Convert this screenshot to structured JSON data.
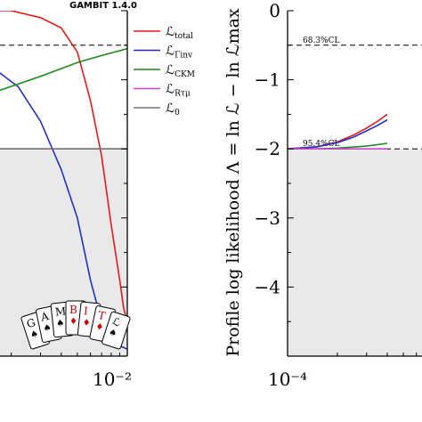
{
  "header": {
    "badge": "GAMBIT 1.4.0"
  },
  "legend": {
    "placement": "top-right of left panel",
    "entries": [
      {
        "name": "total",
        "main": "ℒ",
        "sub": "total",
        "color": "#e31a1c"
      },
      {
        "name": "gamma-inv",
        "main": "ℒ",
        "sub": "Γinv",
        "color": "#1f2fbf"
      },
      {
        "name": "ckm",
        "main": "ℒ",
        "sub": "CKM",
        "color": "#1a8a1a"
      },
      {
        "name": "r-tau-mu",
        "main": "ℒ",
        "sub": "Rτμ",
        "color": "#cc44cc"
      },
      {
        "name": "zero",
        "main": "ℒ",
        "sub": "0",
        "color": "#777777"
      }
    ]
  },
  "logo": {
    "cards": [
      "G",
      "A",
      "M",
      "B",
      "I",
      "T",
      "ℒ"
    ],
    "red_cards": [
      "B",
      "I",
      "T"
    ]
  },
  "chart_data": [
    {
      "type": "line",
      "panel": "left",
      "x_scale": "log",
      "xlim": [
        0.0001,
        0.01
      ],
      "x_tick_labels": [
        "10⁻²"
      ],
      "ylim": [
        -5,
        0
      ],
      "grid": false,
      "shaded_region": {
        "y_below": -2.0,
        "color": "#e9e9e9"
      },
      "reference_lines": [
        {
          "label": "68.3%CL",
          "y": -0.5
        },
        {
          "label": "95.4%CL",
          "y": -2.0
        }
      ],
      "series": [
        {
          "name": "total",
          "x": [
            8e-05,
            0.0002,
            0.0005,
            0.001,
            0.002,
            0.003,
            0.004,
            0.005,
            0.006,
            0.007,
            0.008,
            0.009,
            0.0095,
            0.01
          ],
          "y": [
            0.0,
            0.0,
            0.0,
            0.0,
            0.0,
            -0.1,
            -0.25,
            -0.6,
            -1.3,
            -2.1,
            -3.1,
            -3.9,
            -4.3,
            -4.5
          ]
        },
        {
          "name": "Γinv",
          "x": [
            8e-05,
            0.0003,
            0.0008,
            0.0015,
            0.0022,
            0.003,
            0.004,
            0.005,
            0.006,
            0.007,
            0.008,
            0.009,
            0.01
          ],
          "y": [
            -0.7,
            -0.62,
            -0.55,
            -0.8,
            -1.1,
            -1.6,
            -2.3,
            -3.0,
            -3.9,
            -4.5,
            -4.75,
            -4.85,
            -4.9
          ]
        },
        {
          "name": "CKM",
          "x": [
            8e-05,
            0.0003,
            0.0008,
            0.0015,
            0.003,
            0.005,
            0.007,
            0.01
          ],
          "y": [
            -1.55,
            -1.48,
            -1.35,
            -1.2,
            -0.95,
            -0.75,
            -0.65,
            -0.55
          ]
        },
        {
          "name": "Rτμ",
          "x": [
            8e-05,
            0.01
          ],
          "y": [
            -2.0,
            -2.0
          ]
        },
        {
          "name": "0",
          "x": [
            8e-05,
            0.01
          ],
          "y": [
            -2.0,
            -2.0
          ]
        }
      ]
    },
    {
      "type": "line",
      "panel": "right",
      "x_scale": "log",
      "xlim": [
        0.0001,
        0.01
      ],
      "x_tick_labels": [
        "10⁻⁴"
      ],
      "ylim": [
        -5,
        0
      ],
      "y_ticks": [
        0,
        -1,
        -2,
        -3,
        -4
      ],
      "y_tick_labels": [
        "0",
        "−1",
        "−2",
        "−3",
        "−4"
      ],
      "ylabel": "Profile log likelihood Λ = ln ℒ − ln ℒmax",
      "grid": false,
      "shaded_region": {
        "y_below": -2.0,
        "color": "#e9e9e9"
      },
      "reference_lines": [
        {
          "label": "68.3%CL",
          "y": -0.5
        },
        {
          "label": "95.4%CL",
          "y": -2.0
        }
      ],
      "series": [
        {
          "name": "total",
          "x": [
            0.0001,
            0.00015,
            0.0002,
            0.00025,
            0.0003,
            0.00035,
            0.0004
          ],
          "y": [
            -2.0,
            -1.97,
            -1.9,
            -1.8,
            -1.7,
            -1.6,
            -1.5
          ]
        },
        {
          "name": "Γinv",
          "x": [
            0.0001,
            0.00015,
            0.0002,
            0.00025,
            0.0003,
            0.00035,
            0.0004
          ],
          "y": [
            -2.0,
            -1.97,
            -1.91,
            -1.83,
            -1.74,
            -1.66,
            -1.58
          ]
        },
        {
          "name": "CKM",
          "x": [
            0.0001,
            0.00015,
            0.0002,
            0.0003,
            0.0004
          ],
          "y": [
            -2.0,
            -2.0,
            -1.99,
            -1.96,
            -1.92
          ]
        },
        {
          "name": "Rτμ",
          "x": [
            0.0001,
            0.0004
          ],
          "y": [
            -2.0,
            -2.0
          ]
        }
      ]
    }
  ]
}
